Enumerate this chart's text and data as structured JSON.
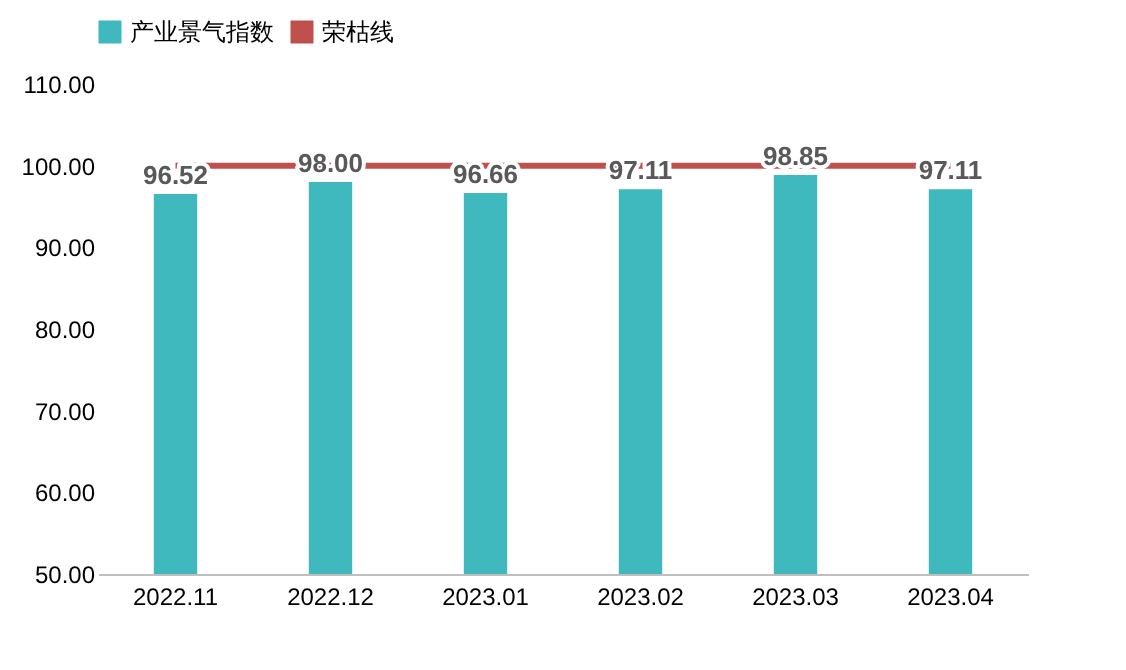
{
  "chart_data": {
    "type": "bar",
    "categories": [
      "2022.11",
      "2022.12",
      "2023.01",
      "2023.02",
      "2023.03",
      "2023.04"
    ],
    "series": [
      {
        "name": "产业景气指数",
        "color": "#3fb8be",
        "values": [
          96.52,
          98.0,
          96.66,
          97.11,
          98.85,
          97.11
        ],
        "value_labels": [
          "96.52",
          "98.00",
          "96.66",
          "97.11",
          "98.85",
          "97.11"
        ]
      },
      {
        "name": "荣枯线",
        "type": "line",
        "color": "#c0504d",
        "values": [
          100,
          100,
          100,
          100,
          100,
          100
        ]
      }
    ],
    "ylim": [
      50,
      110
    ],
    "yticks": [
      {
        "value": 50,
        "label": "50.00"
      },
      {
        "value": 60,
        "label": "60.00"
      },
      {
        "value": 70,
        "label": "70.00"
      },
      {
        "value": 80,
        "label": "80.00"
      },
      {
        "value": 90,
        "label": "90.00"
      },
      {
        "value": 100,
        "label": "100.00"
      },
      {
        "value": 110,
        "label": "110.00"
      }
    ],
    "legend": "top"
  }
}
